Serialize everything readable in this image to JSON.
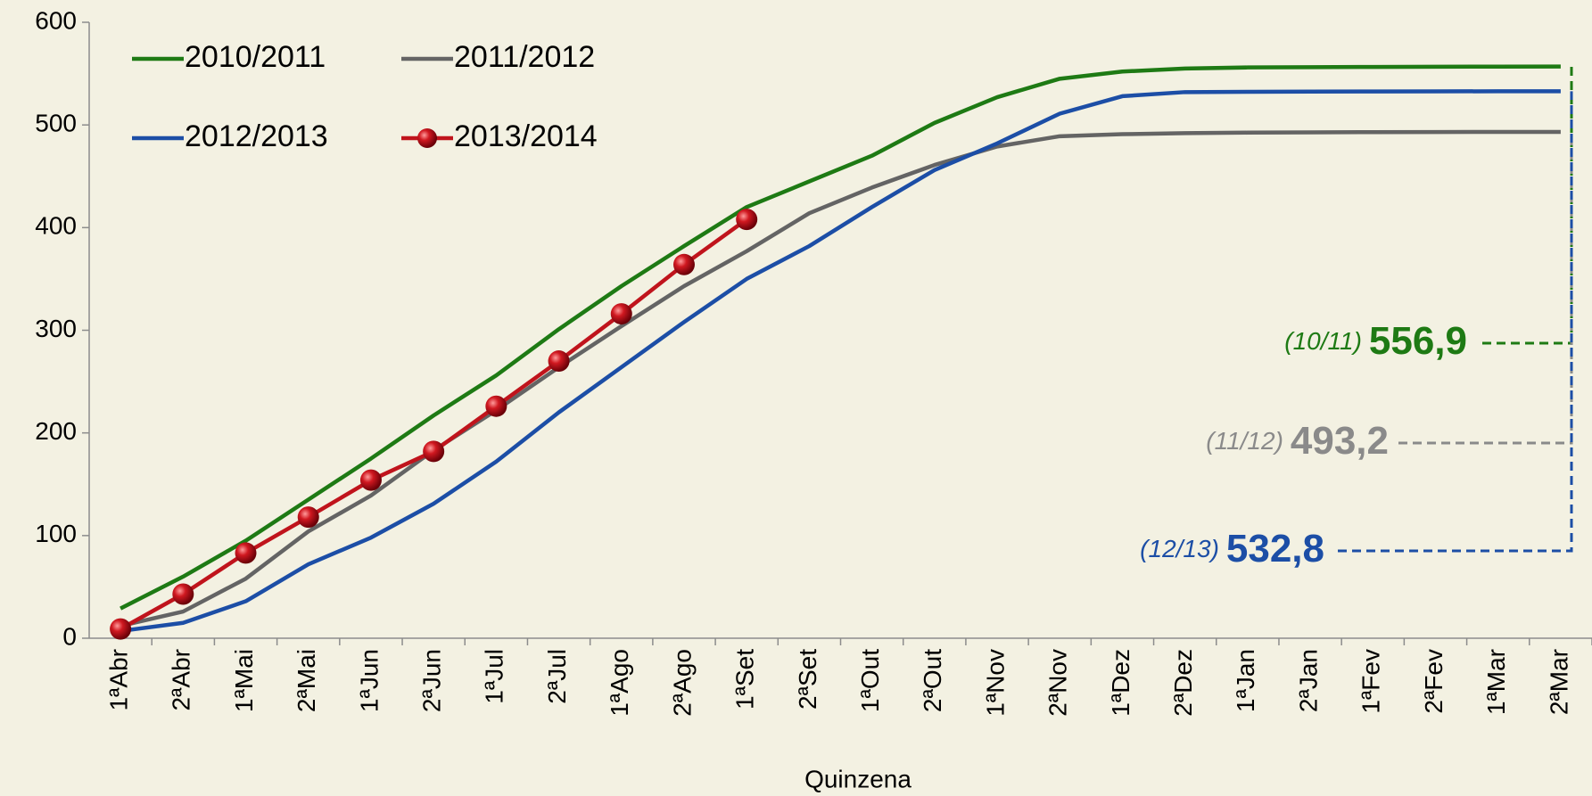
{
  "chart_data": {
    "type": "line",
    "x_label": "Quinzena",
    "categories": [
      "1ªAbr",
      "2ªAbr",
      "1ªMai",
      "2ªMai",
      "1ªJun",
      "2ªJun",
      "1ªJul",
      "2ªJul",
      "1ªAgo",
      "2ªAgo",
      "1ªSet",
      "2ªSet",
      "1ªOut",
      "2ªOut",
      "1ªNov",
      "2ªNov",
      "1ªDez",
      "2ªDez",
      "1ªJan",
      "2ªJan",
      "1ªFev",
      "2ªFev",
      "1ªMar",
      "2ªMar"
    ],
    "series": [
      {
        "name": "2010/2011",
        "color": "#1e7a14",
        "values": [
          29,
          60,
          95,
          135,
          175,
          217,
          256,
          301,
          343,
          382,
          420,
          445,
          470,
          502,
          527,
          545,
          552,
          555,
          556,
          556.3,
          556.5,
          556.7,
          556.8,
          556.9
        ]
      },
      {
        "name": "2011/2012",
        "color": "#646464",
        "values": [
          12,
          26,
          58,
          104,
          139,
          183,
          222,
          264,
          304,
          343,
          377,
          414,
          439,
          461,
          479,
          489,
          491,
          492,
          492.5,
          492.8,
          493,
          493.1,
          493.2,
          493.2
        ]
      },
      {
        "name": "2012/2013",
        "color": "#1c4ea6",
        "values": [
          7,
          15,
          36,
          72,
          98,
          131,
          172,
          220,
          264,
          308,
          350,
          382,
          420,
          456,
          482,
          511,
          528,
          532,
          532.3,
          532.5,
          532.6,
          532.7,
          532.8,
          532.8
        ]
      },
      {
        "name": "2013/2014",
        "color": "#c0141c",
        "marker": "sphere",
        "values": [
          9,
          43,
          83,
          118,
          154,
          182,
          226,
          270,
          316,
          364,
          408,
          null,
          null,
          null,
          null,
          null,
          null,
          null,
          null,
          null,
          null,
          null,
          null,
          null
        ]
      }
    ],
    "annotations": [
      {
        "label": "(10/11)",
        "value": 556.9,
        "value_label": "556,9",
        "color": "#1e7a14"
      },
      {
        "label": "(11/12)",
        "value": 493.2,
        "value_label": "493,2",
        "color": "#8a8a8a"
      },
      {
        "label": "(12/13)",
        "value": 532.8,
        "value_label": "532,8",
        "color": "#1c4ea6"
      }
    ],
    "ylim": [
      0,
      600
    ],
    "yticks": [
      0,
      100,
      200,
      300,
      400,
      500,
      600
    ],
    "grid": false,
    "legend": "top-left"
  }
}
